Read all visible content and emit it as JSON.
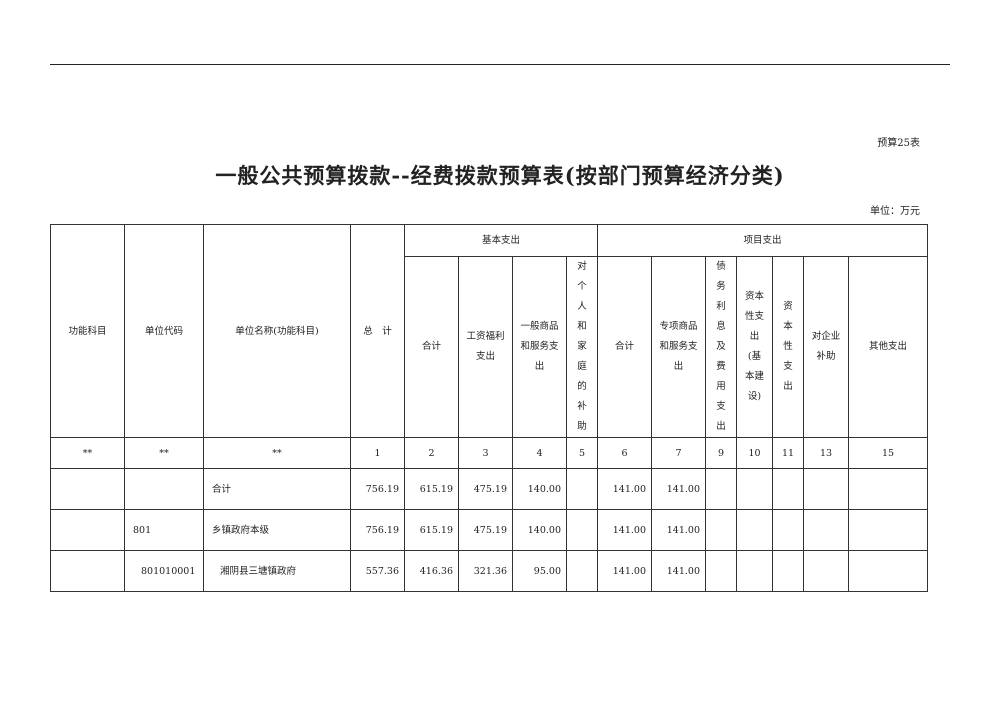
{
  "table_no": "预算25表",
  "title": "一般公共预算拨款--经费拨款预算表(按部门预算经济分类)",
  "unit": "单位：万元",
  "headers": {
    "func": "功能科目",
    "code": "单位代码",
    "name": "单位名称(功能科目)",
    "total": "总　计",
    "basic": "基本支出",
    "project": "项目支出",
    "basic_cols": [
      "合计",
      "工资福利\n支出",
      "一般商品\n和服务支\n出",
      "对\n个\n人\n和\n家\n庭\n的\n补\n助"
    ],
    "project_cols": [
      "合计",
      "专项商品\n和服务支\n出",
      "债\n务\n利\n息\n及\n费\n用\n支\n出",
      "资本\n性支\n出\n(基\n本建\n设)",
      "资\n本\n性\n支\n出",
      "对企业\n补助",
      "其他支出"
    ]
  },
  "index_row": [
    "**",
    "**",
    "**",
    "1",
    "2",
    "3",
    "4",
    "5",
    "6",
    "7",
    "9",
    "10",
    "11",
    "13",
    "15"
  ],
  "rows": [
    {
      "func": "",
      "code": "",
      "name": "合计",
      "values": [
        "756.19",
        "615.19",
        "475.19",
        "140.00",
        "",
        "141.00",
        "141.00",
        "",
        "",
        "",
        "",
        ""
      ]
    },
    {
      "func": "",
      "code": "801",
      "name": "乡镇政府本级",
      "values": [
        "756.19",
        "615.19",
        "475.19",
        "140.00",
        "",
        "141.00",
        "141.00",
        "",
        "",
        "",
        "",
        ""
      ]
    },
    {
      "func": "",
      "code": "801010001",
      "name": "湘阴县三塘镇政府",
      "values": [
        "557.36",
        "416.36",
        "321.36",
        "95.00",
        "",
        "141.00",
        "141.00",
        "",
        "",
        "",
        "",
        ""
      ]
    }
  ]
}
